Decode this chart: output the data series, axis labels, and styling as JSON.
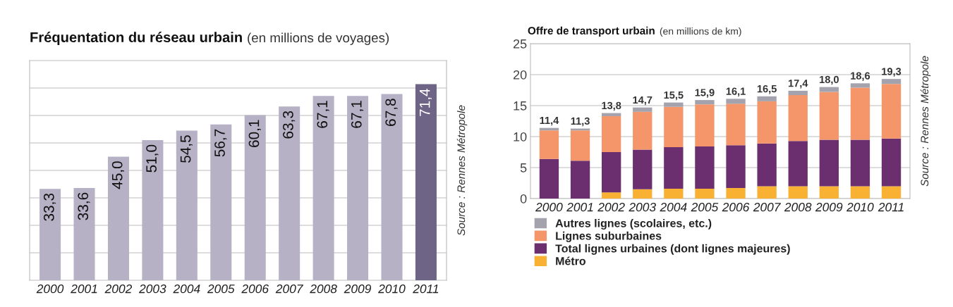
{
  "chart_data": [
    {
      "type": "bar",
      "title": "Fréquentation du réseau urbain",
      "subtitle": "(en millions de voyages)",
      "categories": [
        "2000",
        "2001",
        "2002",
        "2003",
        "2004",
        "2005",
        "2006",
        "2007",
        "2008",
        "2009",
        "2010",
        "2011"
      ],
      "values": [
        33.3,
        33.6,
        45.0,
        51.0,
        54.5,
        56.7,
        60.1,
        63.3,
        67.1,
        67.1,
        67.8,
        71.4
      ],
      "value_labels": [
        "33,3",
        "33,6",
        "45,0",
        "51,0",
        "54,5",
        "56,7",
        "60,1",
        "63,3",
        "67,1",
        "67,1",
        "67,8",
        "71,4"
      ],
      "colors": [
        "#b7b1c6",
        "#b7b1c6",
        "#b7b1c6",
        "#b7b1c6",
        "#b7b1c6",
        "#b7b1c6",
        "#b7b1c6",
        "#b7b1c6",
        "#b7b1c6",
        "#b7b1c6",
        "#b7b1c6",
        "#6e6586"
      ],
      "ylim": [
        0,
        80
      ],
      "yticks": [
        {
          "value": 10,
          "label": null
        },
        {
          "value": 20,
          "label": null
        },
        {
          "value": 30,
          "label": null
        },
        {
          "value": 40,
          "label": null
        },
        {
          "value": 50,
          "label": null
        },
        {
          "value": 60,
          "label": null
        },
        {
          "value": 70,
          "label": null
        }
      ],
      "tick_labels": "x",
      "grid": "y",
      "legend": false,
      "annotations": [
        "Source : Rennes Métropole"
      ]
    },
    {
      "type": "bar",
      "title": "Offre de transport urbain",
      "subtitle": "(en millions de km)",
      "stacked": true,
      "categories": [
        "2000",
        "2001",
        "2002",
        "2003",
        "2004",
        "2005",
        "2006",
        "2007",
        "2008",
        "2009",
        "2010",
        "2011"
      ],
      "series": [
        {
          "name": "Métro",
          "color": "#f8b133",
          "values": [
            0,
            0,
            1.0,
            1.5,
            1.6,
            1.6,
            1.7,
            2.0,
            2.0,
            2.0,
            2.0,
            2.0
          ]
        },
        {
          "name": "Total lignes urbaines (dont lignes majeures)",
          "color": "#6b2f70",
          "values": [
            6.4,
            6.1,
            6.5,
            6.4,
            6.7,
            6.8,
            6.9,
            6.9,
            7.3,
            7.5,
            7.5,
            7.7
          ]
        },
        {
          "name": "Lignes suburbaines",
          "color": "#f4966a",
          "values": [
            4.6,
            4.9,
            5.8,
            6.1,
            6.5,
            6.8,
            6.7,
            6.8,
            7.4,
            7.7,
            8.4,
            8.8
          ]
        },
        {
          "name": "Autres lignes (scolaires, etc.)",
          "color": "#a4a2ad",
          "values": [
            0.4,
            0.3,
            0.5,
            0.7,
            0.7,
            0.7,
            0.8,
            0.8,
            0.7,
            0.8,
            0.7,
            0.8
          ]
        }
      ],
      "totals": [
        "11,4",
        "11,3",
        "13,8",
        "14,7",
        "15,5",
        "15,9",
        "16,1",
        "16,5",
        "17,4",
        "18,0",
        "18,6",
        "19,3"
      ],
      "ylim": [
        0,
        25
      ],
      "yticks": [
        0,
        5,
        10,
        15,
        20,
        25
      ],
      "grid": "y",
      "legend": "bottom",
      "annotations": [
        "Source : Rennes Métropole"
      ]
    }
  ]
}
